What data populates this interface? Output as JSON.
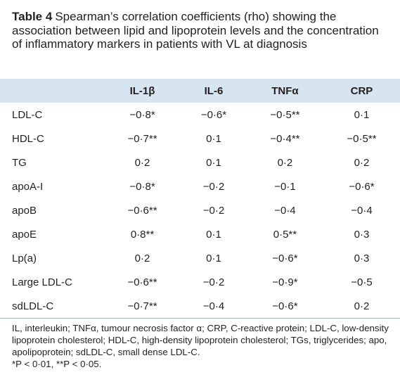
{
  "title": {
    "label": "Table 4",
    "text": "Spearman’s correlation coefficients (rho) showing the association between lipid and lipoprotein levels and the concentration of inflammatory markers in patients with VL at diagnosis"
  },
  "table": {
    "columns": [
      "IL-1β",
      "IL-6",
      "TNFα",
      "CRP"
    ],
    "rows": [
      [
        "LDL-C",
        "−0·8*",
        "−0·6*",
        "−0·5**",
        "0·1"
      ],
      [
        "HDL-C",
        "−0·7**",
        "0·1",
        "−0·4**",
        "−0·5**"
      ],
      [
        "TG",
        "0·2",
        "0·1",
        "0·2",
        "0·2"
      ],
      [
        "apoA-I",
        "−0·8*",
        "−0·2",
        "−0·1",
        "−0·6*"
      ],
      [
        "apoB",
        "−0·6**",
        "−0·2",
        "−0·4",
        "−0·4"
      ],
      [
        "apoE",
        "0·8**",
        "0·1",
        "0·5**",
        "0·3"
      ],
      [
        "Lp(a)",
        "0·2",
        "0·1",
        "−0·6*",
        "0·3"
      ],
      [
        "Large LDL-C",
        "−0·6**",
        "−0·2",
        "−0·9*",
        "−0·5"
      ],
      [
        "sdLDL-C",
        "−0·7**",
        "−0·4",
        "−0·6*",
        "0·2"
      ]
    ]
  },
  "footnote": {
    "abbreviations": "IL, interleukin; TNFα, tumour necrosis factor α; CRP, C-reactive protein; LDL-C, low-density lipoprotein cholesterol; HDL-C, high-density lipoprotein cholesterol; TGs, triglycerides; apo, apolipoprotein; sdLDL-C, small dense LDL-C.",
    "significance": "*P < 0·01, **P < 0·05."
  }
}
